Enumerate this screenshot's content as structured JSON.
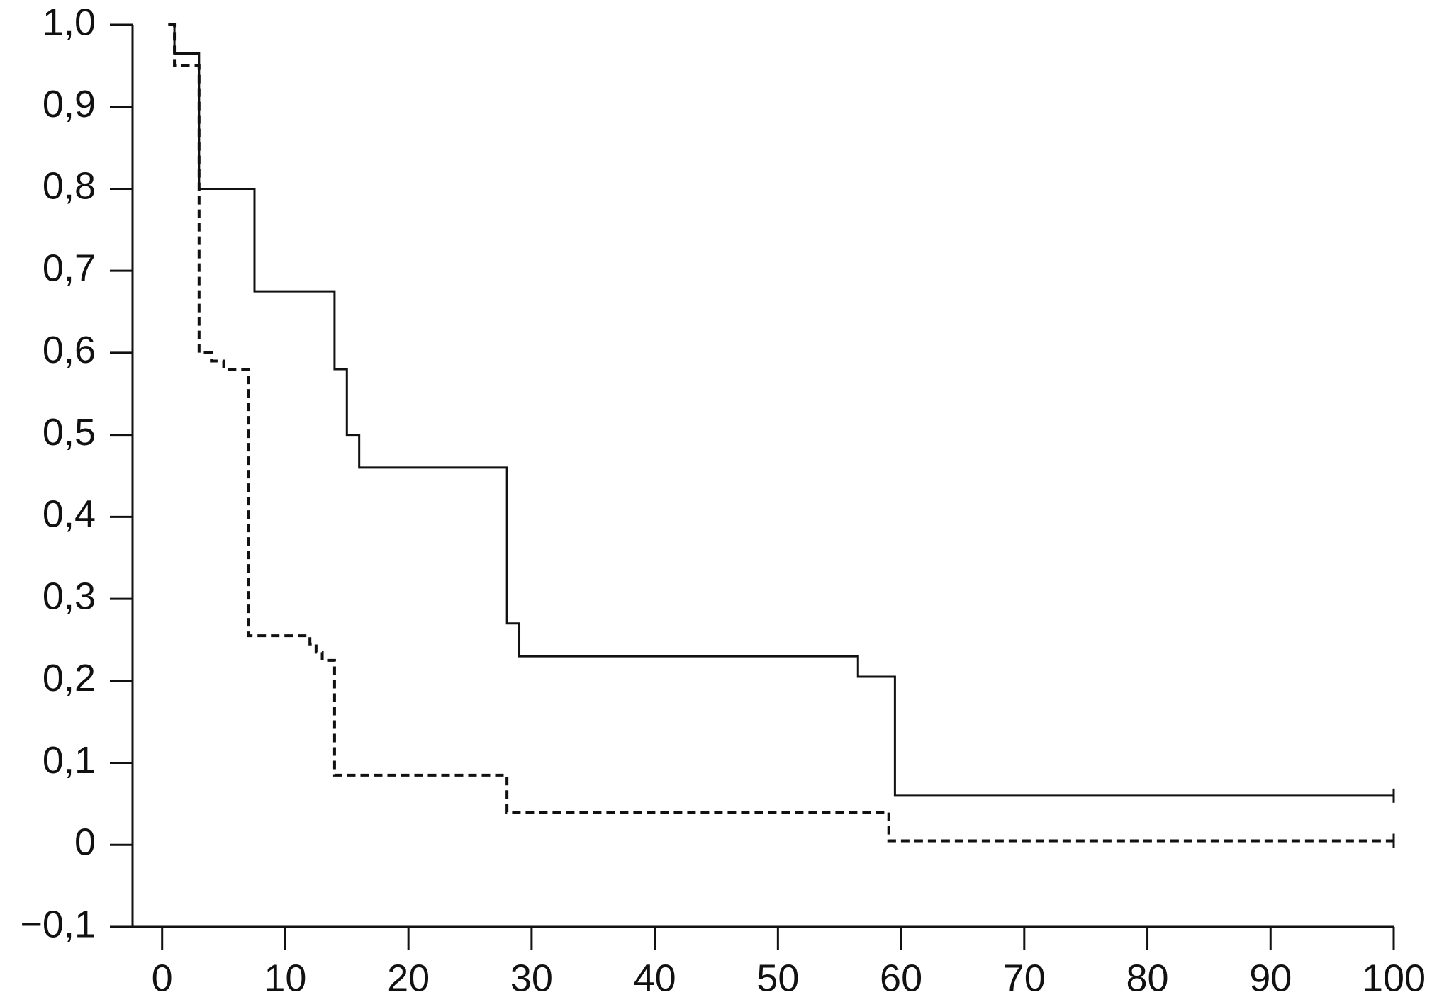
{
  "chart_data": {
    "type": "step",
    "xlim": [
      -2.4,
      100
    ],
    "ylim": [
      -0.1,
      1.0
    ],
    "xticks": [
      0,
      10,
      20,
      30,
      40,
      50,
      60,
      70,
      80,
      90,
      100
    ],
    "yticks": [
      {
        "value": -0.1,
        "label": "−0,1"
      },
      0,
      {
        "value": 0.1,
        "label": "0,1"
      },
      {
        "value": 0.2,
        "label": "0,2"
      },
      {
        "value": 0.3,
        "label": "0,3"
      },
      {
        "value": 0.4,
        "label": "0,4"
      },
      {
        "value": 0.5,
        "label": "0,5"
      },
      {
        "value": 0.6,
        "label": "0,6"
      },
      {
        "value": 0.7,
        "label": "0,7"
      },
      {
        "value": 0.8,
        "label": "0,8"
      },
      {
        "value": 0.9,
        "label": "0,9"
      },
      {
        "value": 1.0,
        "label": "1,0"
      }
    ],
    "series": [
      {
        "color": "#111111",
        "dash": "solid",
        "x": [
          0.5,
          1,
          3,
          7.5,
          14,
          15,
          16,
          28,
          29,
          56.5,
          59.5,
          100
        ],
        "values": [
          1.0,
          0.965,
          0.8,
          0.675,
          0.58,
          0.5,
          0.46,
          0.27,
          0.23,
          0.205,
          0.06,
          0.06
        ]
      },
      {
        "color": "#111111",
        "dash": "dashed",
        "x": [
          0.5,
          1,
          3,
          4,
          5,
          7,
          12,
          12.5,
          13,
          14,
          28,
          59,
          100
        ],
        "values": [
          1.0,
          0.95,
          0.6,
          0.59,
          0.58,
          0.255,
          0.245,
          0.235,
          0.225,
          0.085,
          0.04,
          0.005,
          0.005
        ]
      }
    ]
  }
}
